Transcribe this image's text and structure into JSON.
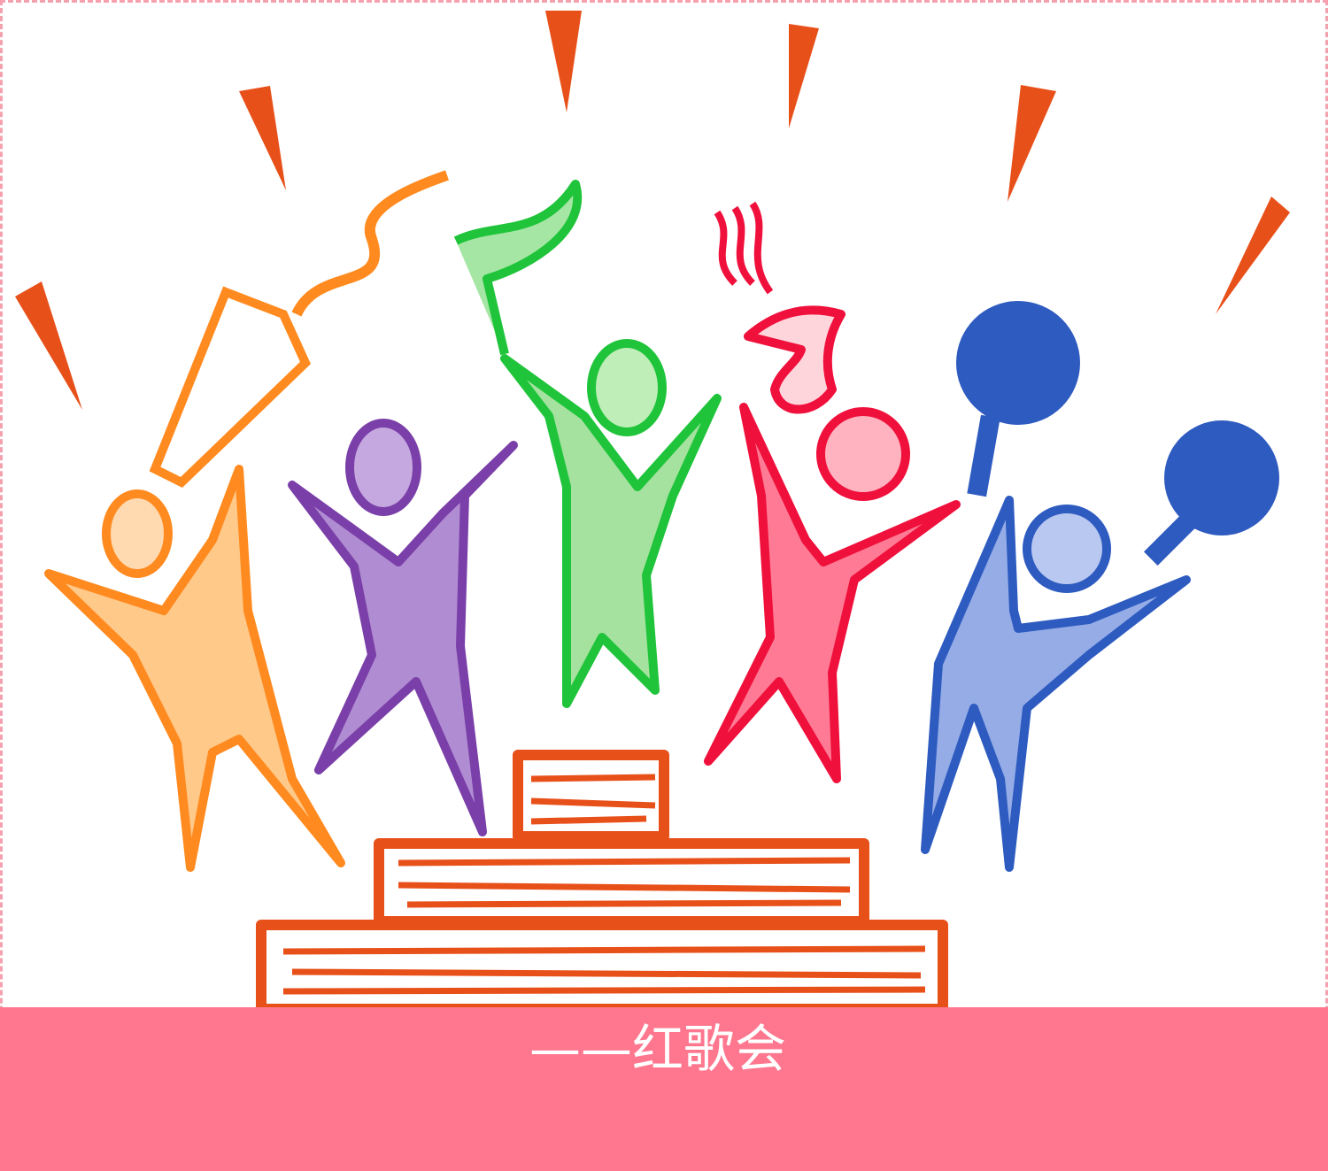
{
  "caption": {
    "text": "——红歌会"
  },
  "colors": {
    "background": "#ffffff",
    "caption_bar": "#ff778f",
    "caption_text": "#ffffff",
    "border": "#f4a0b0",
    "sparks": "#e8501a",
    "stage": "#e8501a",
    "figure_orange": "#ff8a1f",
    "figure_purple": "#7a3fa8",
    "figure_green": "#1fc43a",
    "figure_red": "#f0103c",
    "figure_blue": "#2e5bc0"
  },
  "illustration": {
    "subject": "cheering-figures-on-stage",
    "figures": [
      {
        "color": "orange",
        "holding": "megaphone-icon"
      },
      {
        "color": "purple",
        "holding": ""
      },
      {
        "color": "green",
        "holding": "flag-icon"
      },
      {
        "color": "red",
        "holding": "trumpet-icon"
      },
      {
        "color": "blue",
        "holding": "pompom-icon"
      }
    ]
  }
}
